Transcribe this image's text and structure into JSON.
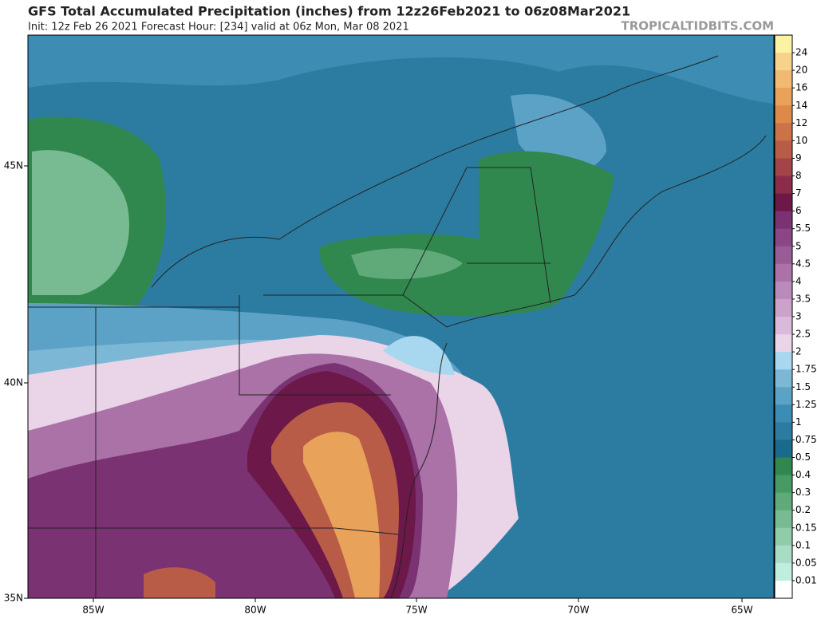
{
  "header": {
    "title": "GFS Total Accumulated Precipitation (inches) from 12z26Feb2021 to 06z08Mar2021",
    "subtitle": "Init: 12z Feb 26 2021   Forecast Hour: [234]   valid at 06z Mon, Mar 08 2021",
    "watermark": "TROPICALTIDBITS.COM"
  },
  "map": {
    "lat_labels": [
      "45N",
      "40N",
      "35N"
    ],
    "lon_labels": [
      "85W",
      "80W",
      "75W",
      "70W",
      "65W"
    ]
  },
  "colorbar": {
    "labels": [
      "24",
      "20",
      "16",
      "14",
      "12",
      "10",
      "9",
      "8",
      "7",
      "6",
      "5.5",
      "5",
      "4.5",
      "4",
      "3.5",
      "3",
      "2.5",
      "2",
      "1.75",
      "1.5",
      "1.25",
      "1",
      "0.75",
      "0.5",
      "0.4",
      "0.3",
      "0.2",
      "0.15",
      "0.1",
      "0.05",
      "0.01"
    ],
    "colors": [
      "#fcf2a4",
      "#f6d28a",
      "#f0ba72",
      "#e8a25a",
      "#dc8a4a",
      "#cc7248",
      "#b85c48",
      "#a24448",
      "#8c2c4a",
      "#6c1848",
      "#7a3272",
      "#8a4686",
      "#9a5c96",
      "#aa72a6",
      "#ba8aba",
      "#caa2ca",
      "#dabadb",
      "#ead4e8",
      "#a8d8ef",
      "#7cb8d6",
      "#5ca2c6",
      "#3c8cb4",
      "#2c7ca2",
      "#1a6a8c",
      "#30884e",
      "#489a64",
      "#60aa7a",
      "#78bb92",
      "#90ccaa",
      "#a8dcc4",
      "#c0eede",
      "#ffffff"
    ]
  }
}
